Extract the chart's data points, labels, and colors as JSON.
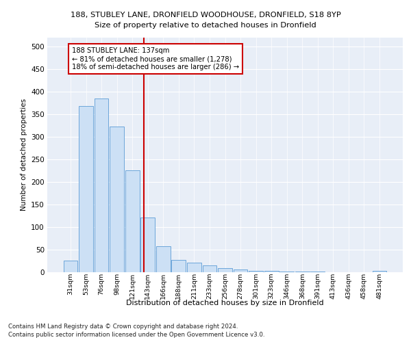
{
  "title_line1": "188, STUBLEY LANE, DRONFIELD WOODHOUSE, DRONFIELD, S18 8YP",
  "title_line2": "Size of property relative to detached houses in Dronfield",
  "xlabel": "Distribution of detached houses by size in Dronfield",
  "ylabel": "Number of detached properties",
  "categories": [
    "31sqm",
    "53sqm",
    "76sqm",
    "98sqm",
    "121sqm",
    "143sqm",
    "166sqm",
    "188sqm",
    "211sqm",
    "233sqm",
    "256sqm",
    "278sqm",
    "301sqm",
    "323sqm",
    "346sqm",
    "368sqm",
    "391sqm",
    "413sqm",
    "436sqm",
    "458sqm",
    "481sqm"
  ],
  "values": [
    25,
    368,
    385,
    323,
    225,
    120,
    57,
    26,
    20,
    15,
    8,
    5,
    3,
    2,
    1,
    1,
    1,
    0,
    0,
    0,
    3
  ],
  "bar_color": "#cce0f5",
  "bar_edge_color": "#5b9bd5",
  "vline_color": "#cc0000",
  "annotation_text": "188 STUBLEY LANE: 137sqm\n← 81% of detached houses are smaller (1,278)\n18% of semi-detached houses are larger (286) →",
  "annotation_box_color": "#ffffff",
  "annotation_box_edge": "#cc0000",
  "ylim": [
    0,
    520
  ],
  "yticks": [
    0,
    50,
    100,
    150,
    200,
    250,
    300,
    350,
    400,
    450,
    500
  ],
  "background_color": "#e8eef7",
  "footer_line1": "Contains HM Land Registry data © Crown copyright and database right 2024.",
  "footer_line2": "Contains public sector information licensed under the Open Government Licence v3.0."
}
